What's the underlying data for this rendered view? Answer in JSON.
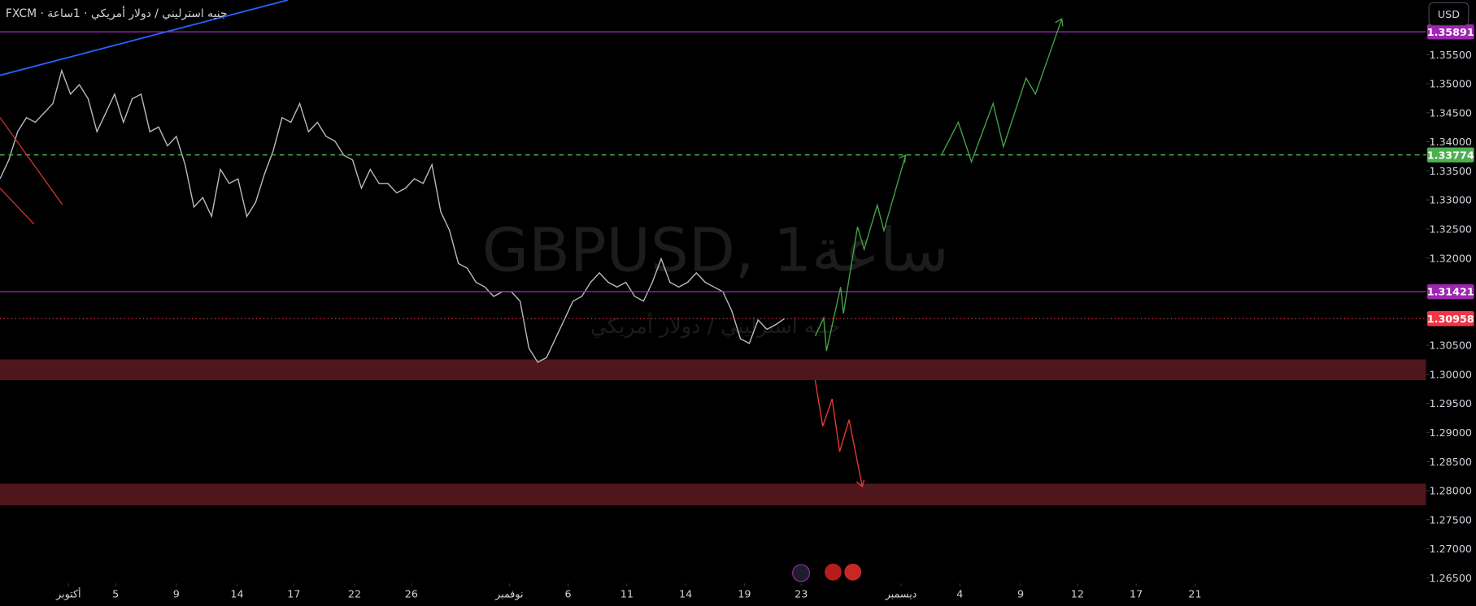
{
  "chart_data": {
    "type": "line",
    "header": "FXCM · جنيه استرليني / دولار أمريكي · 1ساعة",
    "watermark": "GBPUSD, 1ساعة",
    "watermark_subtitle": "جنيه استرليني / دولار أمريكي",
    "currency_button": "USD",
    "xlim": [
      -3.5,
      69.3
    ],
    "ylim": [
      1.26403,
      1.36439
    ],
    "xticks": [
      {
        "value": 0,
        "label": "أكتوبر"
      },
      {
        "value": 2.4,
        "label": "5"
      },
      {
        "value": 5.5,
        "label": "9"
      },
      {
        "value": 8.6,
        "label": "14"
      },
      {
        "value": 11.5,
        "label": "17"
      },
      {
        "value": 14.6,
        "label": "22"
      },
      {
        "value": 17.5,
        "label": "26"
      },
      {
        "value": 22.5,
        "label": "نوفمبر"
      },
      {
        "value": 25.5,
        "label": "6"
      },
      {
        "value": 28.5,
        "label": "11"
      },
      {
        "value": 31.5,
        "label": "14"
      },
      {
        "value": 34.5,
        "label": "19"
      },
      {
        "value": 37.4,
        "label": "23"
      },
      {
        "value": 42.5,
        "label": "ديسمبر"
      },
      {
        "value": 45.5,
        "label": "4"
      },
      {
        "value": 48.6,
        "label": "9"
      },
      {
        "value": 51.5,
        "label": "12"
      },
      {
        "value": 54.5,
        "label": "17"
      },
      {
        "value": 57.5,
        "label": "21"
      }
    ],
    "yticks": [
      {
        "value": 1.355,
        "label": "1.35500"
      },
      {
        "value": 1.35,
        "label": "1.35000"
      },
      {
        "value": 1.345,
        "label": "1.34500"
      },
      {
        "value": 1.34,
        "label": "1.34000"
      },
      {
        "value": 1.335,
        "label": "1.33500"
      },
      {
        "value": 1.33,
        "label": "1.33000"
      },
      {
        "value": 1.325,
        "label": "1.32500"
      },
      {
        "value": 1.32,
        "label": "1.32000"
      },
      {
        "value": 1.305,
        "label": "1.30500"
      },
      {
        "value": 1.3,
        "label": "1.30000"
      },
      {
        "value": 1.295,
        "label": "1.29500"
      },
      {
        "value": 1.29,
        "label": "1.29000"
      },
      {
        "value": 1.285,
        "label": "1.28500"
      },
      {
        "value": 1.28,
        "label": "1.28000"
      },
      {
        "value": 1.275,
        "label": "1.27500"
      },
      {
        "value": 1.27,
        "label": "1.27000"
      },
      {
        "value": 1.265,
        "label": "1.26500"
      }
    ],
    "series": [
      {
        "name": "GBPUSD",
        "color": "#b8bcc4",
        "x": [
          -3.5,
          -3.05,
          -2.6,
          -2.15,
          -1.7,
          -1.25,
          -0.8,
          -0.35,
          0.1,
          0.55,
          1,
          1.45,
          1.9,
          2.35,
          2.8,
          3.25,
          3.7,
          4.15,
          4.6,
          5.05,
          5.5,
          5.95,
          6.4,
          6.85,
          7.3,
          7.75,
          8.2,
          8.65,
          9.1,
          9.55,
          10,
          10.45,
          10.9,
          11.35,
          11.8,
          12.25,
          12.7,
          13.15,
          13.6,
          14.05,
          14.5,
          14.95,
          15.4,
          15.85,
          16.3,
          16.75,
          17.2,
          17.65,
          18.1,
          18.55,
          19,
          19.45,
          19.9,
          20.35,
          20.8,
          21.25,
          21.7,
          22.15,
          22.6,
          23.05,
          23.5,
          23.95,
          24.4,
          24.85,
          25.3,
          25.75,
          26.2,
          26.65,
          27.1,
          27.55,
          28,
          28.45,
          28.9,
          29.35,
          29.8,
          30.25,
          30.7,
          31.15,
          31.6,
          32.05,
          32.5,
          32.95,
          33.4,
          33.85,
          34.3,
          34.75,
          35.2,
          35.65,
          36.1,
          36.55
        ],
        "values": [
          1.33363,
          1.33687,
          1.34173,
          1.34416,
          1.34335,
          1.34497,
          1.34658,
          1.35225,
          1.3482,
          1.34982,
          1.34739,
          1.34173,
          1.34497,
          1.3482,
          1.34335,
          1.34739,
          1.3482,
          1.34173,
          1.34254,
          1.3393,
          1.34092,
          1.33606,
          1.32878,
          1.3304,
          1.32716,
          1.33525,
          1.33283,
          1.33363,
          1.32716,
          1.32959,
          1.33444,
          1.33849,
          1.34416,
          1.34335,
          1.34658,
          1.34173,
          1.34335,
          1.34092,
          1.34011,
          1.33768,
          1.33687,
          1.33202,
          1.33525,
          1.33283,
          1.33283,
          1.33121,
          1.33202,
          1.33363,
          1.33283,
          1.33606,
          1.32797,
          1.32473,
          1.31907,
          1.31826,
          1.31583,
          1.31502,
          1.3134,
          1.31421,
          1.31421,
          1.31259,
          1.3045,
          1.30207,
          1.30288,
          1.30612,
          1.30935,
          1.31259,
          1.3134,
          1.31583,
          1.31745,
          1.31583,
          1.31502,
          1.31583,
          1.3134,
          1.31259,
          1.31583,
          1.31988,
          1.31583,
          1.31502,
          1.31583,
          1.31745,
          1.31583,
          1.31502,
          1.31421,
          1.31097,
          1.30612,
          1.30531,
          1.30935,
          1.30774,
          1.30855,
          1.30958
        ]
      }
    ],
    "levels": [
      {
        "value": 1.35891,
        "label": "1.35891",
        "color": "#9c27b0",
        "style": "solid"
      },
      {
        "value": 1.33774,
        "label": "1.33774",
        "color": "#4caf50",
        "style": "dashed"
      },
      {
        "value": 1.31421,
        "label": "1.31421",
        "color": "#9c27b0",
        "style": "solid"
      },
      {
        "value": 1.30958,
        "label": "1.30958",
        "color": "#f23645",
        "style": "dotted"
      }
    ],
    "zones": [
      [
        1.299,
        1.30256
      ],
      [
        1.27747,
        1.28119
      ]
    ],
    "zone_color": "#4f171c"
  }
}
